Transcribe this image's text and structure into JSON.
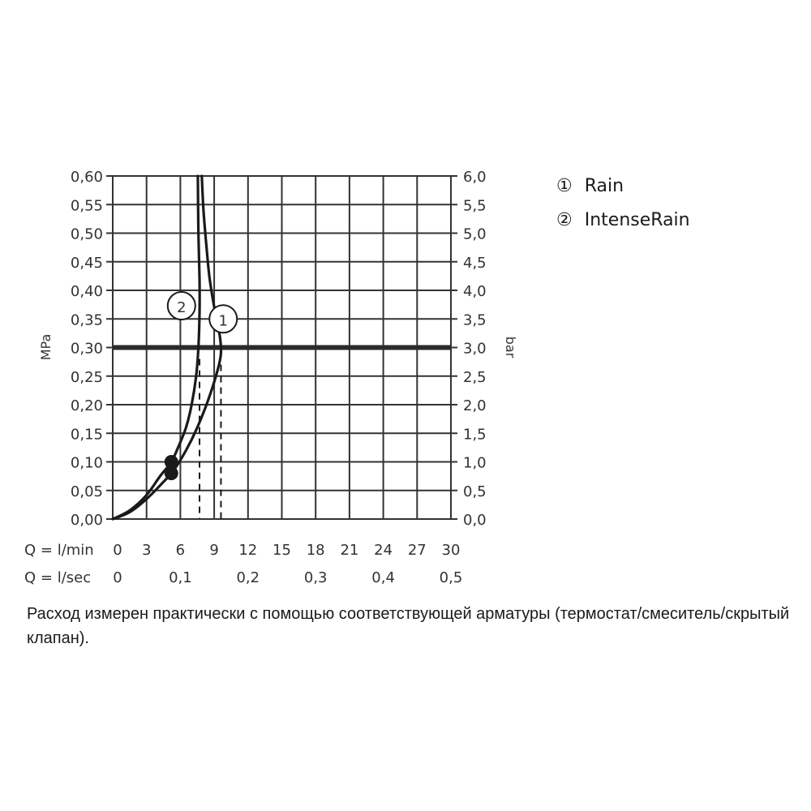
{
  "chart_data": {
    "type": "line",
    "x_label_main": "Q = l/min",
    "x_label_secondary": "Q = l/sec",
    "x_ticks_main": [
      "0",
      "3",
      "6",
      "9",
      "12",
      "15",
      "18",
      "21",
      "24",
      "27",
      "30"
    ],
    "x_ticks_main_values": [
      0,
      3,
      6,
      9,
      12,
      15,
      18,
      21,
      24,
      27,
      30
    ],
    "x_ticks_secondary": [
      "0",
      "0,1",
      "0,2",
      "0,3",
      "0,4",
      "0,5"
    ],
    "x_ticks_secondary_values": [
      0,
      6,
      12,
      18,
      24,
      30
    ],
    "xlim": [
      0,
      30
    ],
    "ylabel_left": "MPa",
    "ylabel_right": "bar",
    "y_ticks_left": [
      "0,00",
      "0,05",
      "0,10",
      "0,15",
      "0,20",
      "0,25",
      "0,30",
      "0,35",
      "0,40",
      "0,45",
      "0,50",
      "0,55",
      "0,60"
    ],
    "y_ticks_right": [
      "0,0",
      "0,5",
      "1,0",
      "1,5",
      "2,0",
      "2,5",
      "3,0",
      "3,5",
      "4,0",
      "4,5",
      "5,0",
      "5,5",
      "6,0"
    ],
    "ylim": [
      0,
      0.6
    ],
    "grid": true,
    "reference_line_y": 0.3,
    "series": [
      {
        "name": "Rain",
        "marker_label": "1",
        "points": [
          [
            0,
            0
          ],
          [
            1.5,
            0.012
          ],
          [
            3,
            0.035
          ],
          [
            4.5,
            0.065
          ],
          [
            5.4,
            0.085
          ],
          [
            6.5,
            0.12
          ],
          [
            7.5,
            0.16
          ],
          [
            8.5,
            0.21
          ],
          [
            9.3,
            0.26
          ],
          [
            9.6,
            0.29
          ],
          [
            9.5,
            0.32
          ],
          [
            9.1,
            0.36
          ],
          [
            8.6,
            0.42
          ],
          [
            8.3,
            0.48
          ],
          [
            8.05,
            0.54
          ],
          [
            7.9,
            0.6
          ]
        ],
        "dashed_x": 9.6
      },
      {
        "name": "IntenseRain",
        "marker_label": "2",
        "points": [
          [
            0,
            0
          ],
          [
            1.5,
            0.015
          ],
          [
            3,
            0.042
          ],
          [
            4.2,
            0.075
          ],
          [
            5.2,
            0.1
          ],
          [
            5.9,
            0.13
          ],
          [
            6.5,
            0.16
          ],
          [
            7,
            0.2
          ],
          [
            7.4,
            0.25
          ],
          [
            7.6,
            0.3
          ],
          [
            7.7,
            0.36
          ],
          [
            7.7,
            0.42
          ],
          [
            7.6,
            0.5
          ],
          [
            7.55,
            0.6
          ]
        ],
        "dashed_x": 7.7
      }
    ],
    "dots": [
      [
        5.2,
        0.1
      ],
      [
        5.2,
        0.08
      ]
    ],
    "legend": [
      {
        "symbol": "①",
        "label": "Rain"
      },
      {
        "symbol": "②",
        "label": "IntenseRain"
      }
    ],
    "legend_position": "top-right"
  },
  "note": "Расход измерен практически с помощью соответствующей арматуры (термостат/смеситель/скрытый клапан).",
  "colors": {
    "line": "#1a1a1a",
    "grid": "#333333",
    "reference": "#2b2b2b"
  }
}
